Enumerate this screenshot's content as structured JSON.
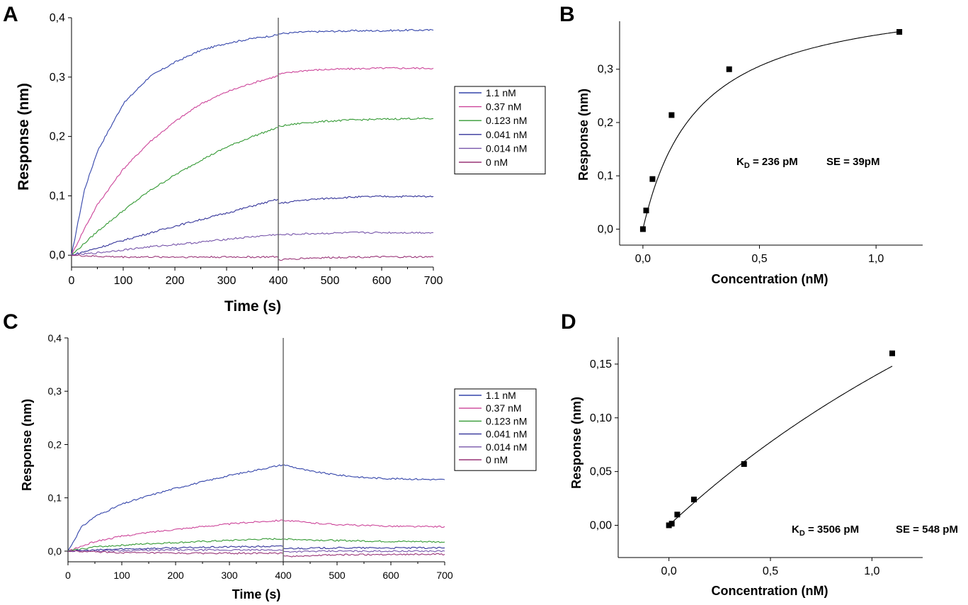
{
  "figure": {
    "panels": [
      {
        "letter": "A",
        "xlabel": "Time (s)",
        "ylabel": "Response (nm)",
        "xticks": [
          "0",
          "100",
          "200",
          "300",
          "400",
          "500",
          "600",
          "700"
        ],
        "yticks": [
          "0,0",
          "0,1",
          "0,2",
          "0,3",
          "0,4"
        ],
        "legend": [
          "1.1 nM",
          "0.37 nM",
          "0.123 nM",
          "0.041 nM",
          "0.014 nM",
          "0 nM"
        ]
      },
      {
        "letter": "B",
        "xlabel": "Concentration (nM)",
        "ylabel": "Response (nm)",
        "xticks": [
          "0,0",
          "0,5",
          "1,0"
        ],
        "yticks": [
          "0,0",
          "0,1",
          "0,2",
          "0,3"
        ],
        "annotation": {
          "kd_prefix": "K",
          "kd_sub": "D",
          "kd_value": " = 236 pM",
          "se": "SE = 39pM"
        }
      },
      {
        "letter": "C",
        "xlabel": "Time (s)",
        "ylabel": "Response (nm)",
        "xticks": [
          "0",
          "100",
          "200",
          "300",
          "400",
          "500",
          "600",
          "700"
        ],
        "yticks": [
          "0,0",
          "0,1",
          "0,2",
          "0,3",
          "0,4"
        ],
        "legend": [
          "1.1 nM",
          "0.37 nM",
          "0.123 nM",
          "0.041 nM",
          "0.014 nM",
          "0 nM"
        ]
      },
      {
        "letter": "D",
        "xlabel": "Concentration (nM)",
        "ylabel": "Response (nm)",
        "xticks": [
          "0,0",
          "0,5",
          "1,0"
        ],
        "yticks": [
          "0,00",
          "0,05",
          "0,10",
          "0,15"
        ],
        "annotation": {
          "kd_prefix": "K",
          "kd_sub": "D",
          "kd_value": " = 3506 pM",
          "se": "SE = 548 pM"
        }
      }
    ]
  },
  "chart_data": [
    {
      "panel": "A",
      "type": "line",
      "xlabel": "Time (s)",
      "ylabel": "Response (nm)",
      "xlim": [
        0,
        700
      ],
      "ylim": [
        -0.02,
        0.4
      ],
      "dissociation_start": 400,
      "legend_position": "right",
      "series": [
        {
          "name": "1.1 nM",
          "color": "#3344aa",
          "x": [
            0,
            25,
            50,
            100,
            150,
            200,
            250,
            300,
            350,
            399,
            401,
            450,
            500,
            550,
            600,
            650,
            700
          ],
          "y": [
            0.0,
            0.11,
            0.175,
            0.255,
            0.3,
            0.325,
            0.345,
            0.357,
            0.365,
            0.371,
            0.373,
            0.376,
            0.377,
            0.378,
            0.378,
            0.379,
            0.379
          ]
        },
        {
          "name": "0.37 nM",
          "color": "#cc4499",
          "x": [
            0,
            25,
            50,
            100,
            150,
            200,
            250,
            300,
            350,
            399,
            401,
            450,
            500,
            550,
            600,
            650,
            700
          ],
          "y": [
            0.0,
            0.045,
            0.085,
            0.145,
            0.19,
            0.225,
            0.255,
            0.275,
            0.29,
            0.302,
            0.305,
            0.311,
            0.313,
            0.314,
            0.315,
            0.315,
            0.315
          ]
        },
        {
          "name": "0.123 nM",
          "color": "#339933",
          "x": [
            0,
            25,
            50,
            100,
            150,
            200,
            250,
            300,
            350,
            399,
            401,
            450,
            500,
            550,
            600,
            650,
            700
          ],
          "y": [
            0.0,
            0.02,
            0.04,
            0.075,
            0.108,
            0.135,
            0.16,
            0.182,
            0.2,
            0.215,
            0.217,
            0.223,
            0.226,
            0.228,
            0.229,
            0.23,
            0.23
          ]
        },
        {
          "name": "0.041 nM",
          "color": "#333399",
          "x": [
            0,
            50,
            100,
            150,
            200,
            250,
            300,
            350,
            399,
            401,
            450,
            500,
            550,
            600,
            650,
            700
          ],
          "y": [
            0.0,
            0.012,
            0.025,
            0.037,
            0.049,
            0.06,
            0.071,
            0.083,
            0.094,
            0.087,
            0.093,
            0.096,
            0.098,
            0.099,
            0.099,
            0.099
          ]
        },
        {
          "name": "0.014 nM",
          "color": "#7755aa",
          "x": [
            0,
            50,
            100,
            150,
            200,
            250,
            300,
            350,
            399,
            401,
            450,
            500,
            550,
            600,
            650,
            700
          ],
          "y": [
            0.0,
            0.004,
            0.009,
            0.014,
            0.018,
            0.022,
            0.027,
            0.031,
            0.035,
            0.034,
            0.036,
            0.037,
            0.038,
            0.038,
            0.038,
            0.038
          ]
        },
        {
          "name": "0 nM",
          "color": "#993377",
          "x": [
            0,
            50,
            100,
            150,
            200,
            250,
            300,
            350,
            399,
            401,
            450,
            500,
            550,
            600,
            650,
            700
          ],
          "y": [
            0.0,
            -0.002,
            -0.003,
            -0.003,
            -0.003,
            -0.003,
            -0.003,
            -0.003,
            -0.003,
            -0.008,
            -0.005,
            -0.004,
            -0.003,
            -0.003,
            -0.003,
            -0.003
          ]
        }
      ]
    },
    {
      "panel": "B",
      "type": "scatter",
      "xlabel": "Concentration (nM)",
      "ylabel": "Response (nm)",
      "xlim": [
        -0.1,
        1.2
      ],
      "ylim": [
        -0.03,
        0.39
      ],
      "points": {
        "x": [
          0.0,
          0.014,
          0.041,
          0.123,
          0.37,
          1.1
        ],
        "y": [
          0.0,
          0.035,
          0.094,
          0.214,
          0.3,
          0.37
        ]
      },
      "fit": {
        "model": "one-site binding",
        "bmax": 0.45,
        "kd_nM": 0.236
      },
      "annotations": [
        "KD = 236 pM",
        "SE = 39pM"
      ]
    },
    {
      "panel": "C",
      "type": "line",
      "xlabel": "Time (s)",
      "ylabel": "Response (nm)",
      "xlim": [
        0,
        700
      ],
      "ylim": [
        -0.02,
        0.4
      ],
      "dissociation_start": 400,
      "legend_position": "right",
      "series": [
        {
          "name": "1.1 nM",
          "color": "#3344aa",
          "x": [
            0,
            25,
            50,
            100,
            150,
            200,
            250,
            300,
            350,
            399,
            401,
            450,
            500,
            550,
            600,
            650,
            700
          ],
          "y": [
            0.0,
            0.045,
            0.065,
            0.088,
            0.104,
            0.118,
            0.13,
            0.142,
            0.152,
            0.162,
            0.162,
            0.15,
            0.143,
            0.138,
            0.136,
            0.135,
            0.134
          ]
        },
        {
          "name": "0.37 nM",
          "color": "#cc4499",
          "x": [
            0,
            50,
            100,
            150,
            200,
            250,
            300,
            350,
            399,
            401,
            450,
            500,
            550,
            600,
            650,
            700
          ],
          "y": [
            0.0,
            0.018,
            0.028,
            0.035,
            0.041,
            0.046,
            0.051,
            0.055,
            0.058,
            0.058,
            0.053,
            0.05,
            0.048,
            0.047,
            0.046,
            0.046
          ]
        },
        {
          "name": "0.123 nM",
          "color": "#339933",
          "x": [
            0,
            50,
            100,
            150,
            200,
            250,
            300,
            350,
            399,
            401,
            450,
            500,
            550,
            600,
            650,
            700
          ],
          "y": [
            0.0,
            0.008,
            0.011,
            0.014,
            0.016,
            0.018,
            0.02,
            0.022,
            0.023,
            0.023,
            0.021,
            0.02,
            0.019,
            0.018,
            0.018,
            0.017
          ]
        },
        {
          "name": "0.041 nM",
          "color": "#333399",
          "x": [
            0,
            100,
            200,
            300,
            399,
            401,
            500,
            600,
            700
          ],
          "y": [
            0.0,
            0.004,
            0.006,
            0.008,
            0.009,
            0.005,
            0.006,
            0.006,
            0.006
          ]
        },
        {
          "name": "0.014 nM",
          "color": "#7755aa",
          "x": [
            0,
            100,
            200,
            300,
            399,
            401,
            500,
            600,
            700
          ],
          "y": [
            0.0,
            0.001,
            0.002,
            0.002,
            0.002,
            -0.001,
            0.0,
            0.0,
            0.0
          ]
        },
        {
          "name": "0 nM",
          "color": "#993377",
          "x": [
            0,
            100,
            200,
            300,
            399,
            401,
            500,
            600,
            700
          ],
          "y": [
            0.0,
            -0.003,
            -0.004,
            -0.004,
            -0.004,
            -0.01,
            -0.007,
            -0.006,
            -0.006
          ]
        }
      ]
    },
    {
      "panel": "D",
      "type": "scatter",
      "xlabel": "Concentration (nM)",
      "ylabel": "Response (nm)",
      "xlim": [
        -0.25,
        1.25
      ],
      "ylim": [
        -0.03,
        0.175
      ],
      "points": {
        "x": [
          0.0,
          0.014,
          0.041,
          0.123,
          0.37,
          1.1
        ],
        "y": [
          0.0,
          0.0015,
          0.01,
          0.024,
          0.057,
          0.16
        ]
      },
      "fit": {
        "model": "one-site binding",
        "bmax": 0.62,
        "kd_nM": 3.506
      },
      "annotations": [
        "KD = 3506 pM",
        "SE = 548 pM"
      ]
    }
  ]
}
